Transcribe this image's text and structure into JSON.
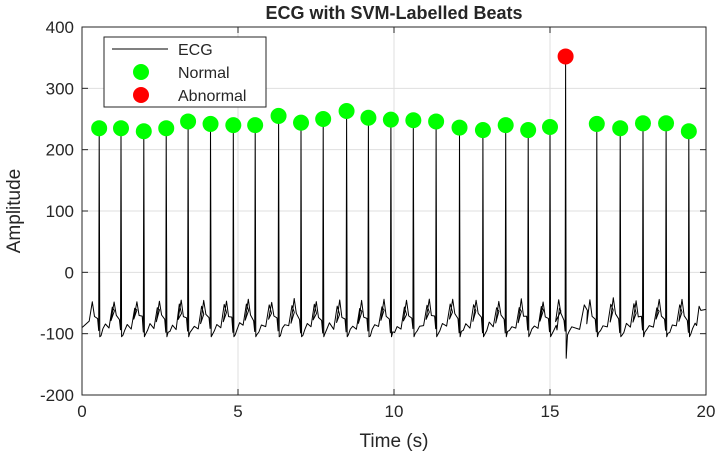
{
  "chart_data": {
    "type": "line",
    "title": "ECG with SVM-Labelled Beats",
    "xlabel": "Time (s)",
    "ylabel": "Amplitude",
    "xlim": [
      0,
      20
    ],
    "ylim": [
      -200,
      400
    ],
    "xticks": [
      "0",
      "5",
      "10",
      "15",
      "20"
    ],
    "yticks": [
      "-200",
      "-100",
      "0",
      "100",
      "200",
      "300",
      "400"
    ],
    "grid": true,
    "legend_position": "top-left",
    "legend": [
      "ECG",
      "Normal",
      "Abnormal"
    ],
    "colors": {
      "ecg": "#000000",
      "normal": "#00ff00",
      "abnormal": "#ff0000"
    },
    "series": [
      {
        "name": "ECG",
        "style": "line",
        "baseline": -75,
        "trough": -105,
        "r_peaks": [
          [
            0.55,
            235
          ],
          [
            1.25,
            235
          ],
          [
            1.98,
            230
          ],
          [
            2.7,
            235
          ],
          [
            3.4,
            246
          ],
          [
            4.12,
            242
          ],
          [
            4.85,
            240
          ],
          [
            5.55,
            240
          ],
          [
            6.3,
            255
          ],
          [
            7.02,
            244
          ],
          [
            7.73,
            250
          ],
          [
            8.48,
            263
          ],
          [
            9.18,
            252
          ],
          [
            9.9,
            249
          ],
          [
            10.62,
            248
          ],
          [
            11.35,
            246
          ],
          [
            12.1,
            236
          ],
          [
            12.85,
            232
          ],
          [
            13.58,
            240
          ],
          [
            14.3,
            232
          ],
          [
            15.0,
            237
          ],
          [
            15.5,
            352
          ],
          [
            16.5,
            242
          ],
          [
            17.25,
            235
          ],
          [
            17.98,
            243
          ],
          [
            18.72,
            243
          ],
          [
            19.45,
            230
          ]
        ]
      },
      {
        "name": "Normal",
        "style": "marker",
        "points": [
          [
            0.55,
            235
          ],
          [
            1.25,
            235
          ],
          [
            1.98,
            230
          ],
          [
            2.7,
            235
          ],
          [
            3.4,
            246
          ],
          [
            4.12,
            242
          ],
          [
            4.85,
            240
          ],
          [
            5.55,
            240
          ],
          [
            6.3,
            255
          ],
          [
            7.02,
            244
          ],
          [
            7.73,
            250
          ],
          [
            8.48,
            263
          ],
          [
            9.18,
            252
          ],
          [
            9.9,
            249
          ],
          [
            10.62,
            248
          ],
          [
            11.35,
            246
          ],
          [
            12.1,
            236
          ],
          [
            12.85,
            232
          ],
          [
            13.58,
            240
          ],
          [
            14.3,
            232
          ],
          [
            15.0,
            237
          ],
          [
            16.5,
            242
          ],
          [
            17.25,
            235
          ],
          [
            17.98,
            243
          ],
          [
            18.72,
            243
          ],
          [
            19.45,
            230
          ]
        ]
      },
      {
        "name": "Abnormal",
        "style": "marker",
        "points": [
          [
            15.5,
            352
          ]
        ]
      }
    ]
  }
}
